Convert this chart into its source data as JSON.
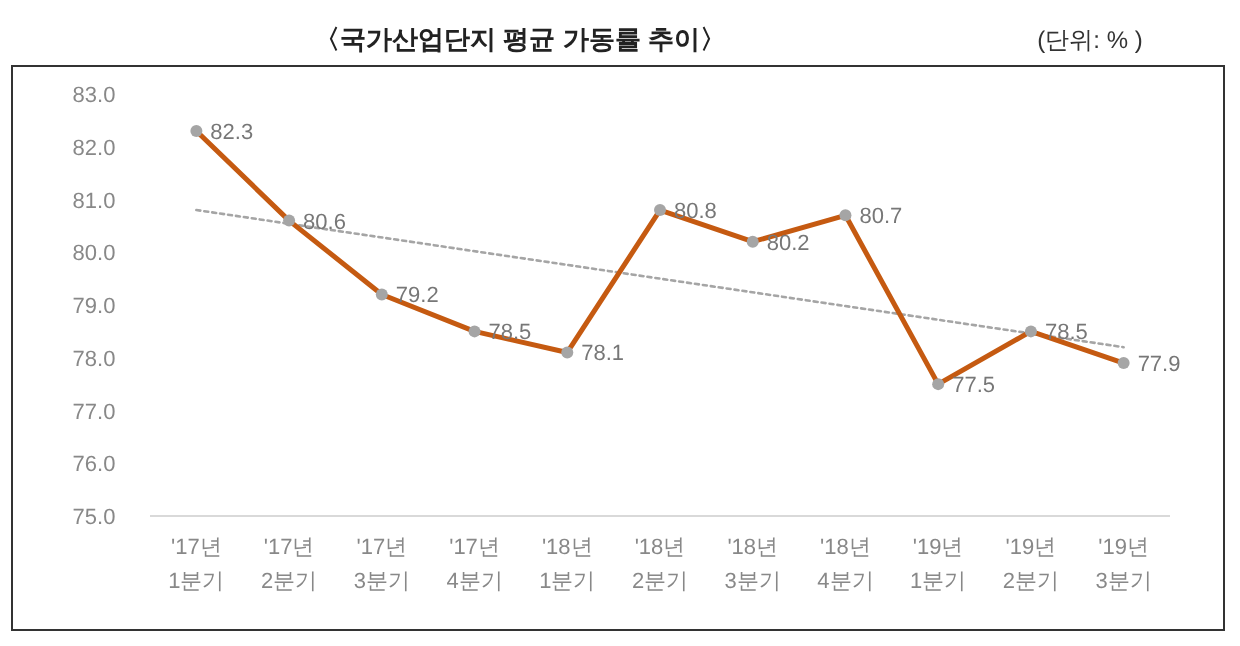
{
  "chart_data": {
    "type": "line",
    "title": "〈국가산업단지 평균 가동률 추이〉",
    "annotations": [
      "(단위: % )"
    ],
    "categories": [
      "'17년\n1분기",
      "'17년\n2분기",
      "'17년\n3분기",
      "'17년\n4분기",
      "'18년\n1분기",
      "'18년\n2분기",
      "'18년\n3분기",
      "'18년\n4분기",
      "'19년\n1분기",
      "'19년\n2분기",
      "'19년\n3분기"
    ],
    "series": [
      {
        "color": "#c55a11",
        "colors": [
          "#a5a5a5",
          "#a5a5a5",
          "#a5a5a5",
          "#a5a5a5",
          "#a5a5a5",
          "#a5a5a5",
          "#a5a5a5",
          "#a5a5a5",
          "#a5a5a5",
          "#a5a5a5",
          "#a5a5a5"
        ],
        "marker": "circle",
        "data_labels": true,
        "values": [
          82.3,
          80.6,
          79.2,
          78.5,
          78.1,
          80.8,
          80.2,
          80.7,
          77.5,
          78.5,
          77.9
        ]
      },
      {
        "type": "line",
        "color": "#a5a5a5",
        "line_style": "dotted",
        "marker": "none",
        "x": [
          "'17년\n1분기",
          "'19년\n3분기"
        ],
        "values": [
          80.8,
          78.2
        ]
      }
    ],
    "ylim": [
      75,
      83
    ],
    "yticks": [
      {
        "value": 75,
        "label": "75.0"
      },
      {
        "value": 76,
        "label": "76.0"
      },
      {
        "value": 77,
        "label": "77.0"
      },
      {
        "value": 78,
        "label": "78.0"
      },
      {
        "value": 79,
        "label": "79.0"
      },
      {
        "value": 80,
        "label": "80.0"
      },
      {
        "value": 81,
        "label": "81.0"
      },
      {
        "value": 82,
        "label": "82.0"
      },
      {
        "value": 83,
        "label": "83.0"
      }
    ],
    "grid": false
  }
}
